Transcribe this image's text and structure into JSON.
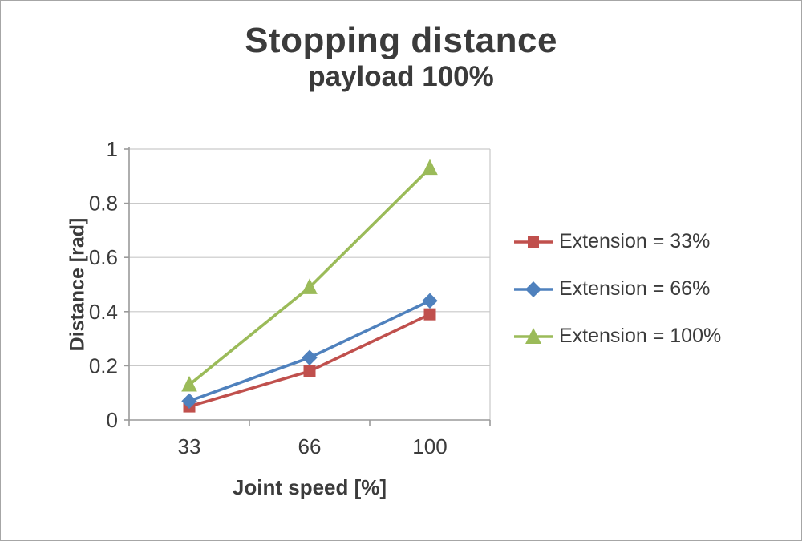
{
  "title": "Stopping distance",
  "subtitle": "payload 100%",
  "chart_data": {
    "type": "line",
    "categories": [
      "33",
      "66",
      "100"
    ],
    "series": [
      {
        "name": "Extension = 33%",
        "marker": "square",
        "color": "#c0504d",
        "values": [
          0.05,
          0.18,
          0.39
        ]
      },
      {
        "name": "Extension = 66%",
        "marker": "diamond",
        "color": "#4f81bd",
        "values": [
          0.07,
          0.23,
          0.44
        ]
      },
      {
        "name": "Extension = 100%",
        "marker": "triangle",
        "color": "#9bbb59",
        "values": [
          0.13,
          0.49,
          0.93
        ]
      }
    ],
    "title": "Stopping distance",
    "subtitle": "payload 100%",
    "xlabel": "Joint speed [%]",
    "ylabel": "Distance [rad]",
    "ylim": [
      0,
      1
    ],
    "yticks": [
      0,
      0.2,
      0.4,
      0.6,
      0.8,
      1
    ],
    "grid": true,
    "legend_position": "right",
    "colors": {
      "gridline": "#c9c9c9",
      "axis": "#9a9a9a",
      "text": "#3b3b3b"
    }
  }
}
